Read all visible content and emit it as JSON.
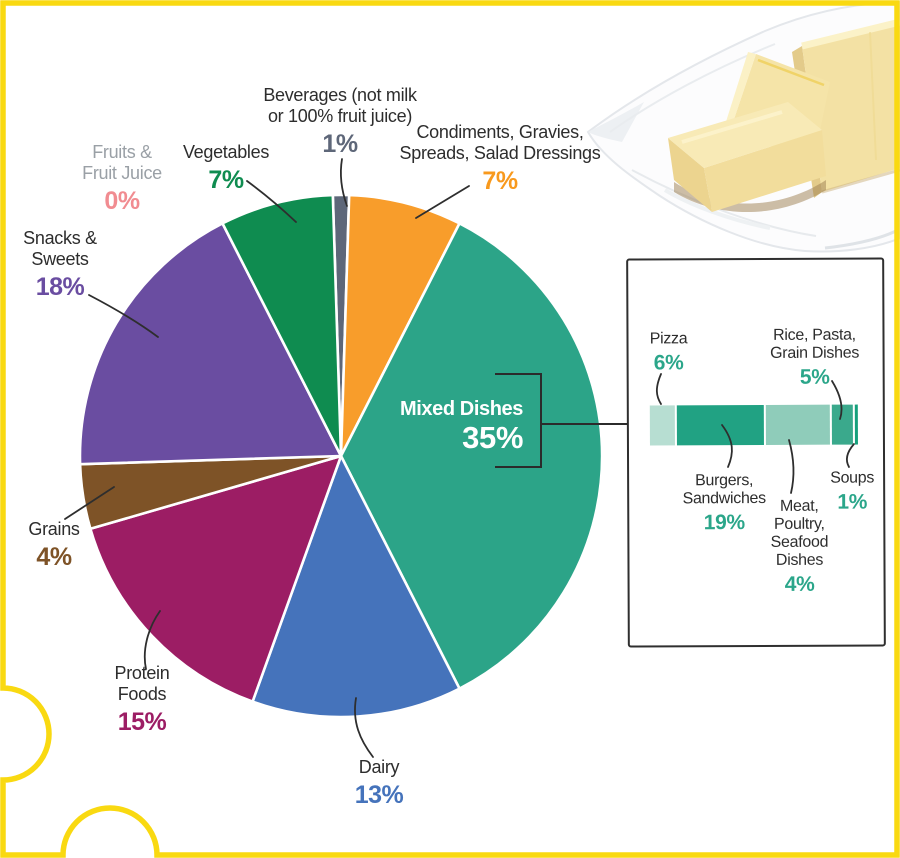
{
  "page": {
    "background": "#FFFFFF",
    "puzzle_border_color": "#F9D911"
  },
  "decorations": {
    "butter_photo": "sticks-of-butter-on-wax-paper"
  },
  "chart_data": {
    "type": "pie",
    "title": "",
    "legend_position": "callout-labels",
    "start_angle_deg": -1.8,
    "direction": "clockwise-from-top",
    "slices": [
      {
        "id": "beverages",
        "label": "Beverages (not milk or 100% fruit juice)",
        "label_lines": [
          "Beverages (not milk",
          "or 100% fruit juice)"
        ],
        "value": 1,
        "pct": "1%",
        "color": "#5E6779",
        "pct_color": "#5E6779",
        "label_color": "#2D2D2D"
      },
      {
        "id": "condiments",
        "label": "Condiments, Gravies, Spreads, Salad Dressings",
        "label_lines": [
          "Condiments, Gravies,",
          "Spreads, Salad Dressings"
        ],
        "value": 7,
        "pct": "7%",
        "color": "#F89D2B",
        "pct_color": "#F8991D",
        "label_color": "#2D2D2D"
      },
      {
        "id": "mixed-dishes",
        "label": "Mixed Dishes",
        "label_lines": [
          "Mixed Dishes"
        ],
        "value": 35,
        "pct": "35%",
        "color": "#2CA488",
        "pct_color": "#FFFFFF",
        "label_color": "#FFFFFF"
      },
      {
        "id": "dairy",
        "label": "Dairy",
        "label_lines": [
          "Dairy"
        ],
        "value": 13,
        "pct": "13%",
        "color": "#4573BB",
        "pct_color": "#4573BB",
        "label_color": "#2D2D2D"
      },
      {
        "id": "protein-foods",
        "label": "Protein Foods",
        "label_lines": [
          "Protein",
          "Foods"
        ],
        "value": 15,
        "pct": "15%",
        "color": "#9C1D64",
        "pct_color": "#9C1D64",
        "label_color": "#2D2D2D"
      },
      {
        "id": "grains",
        "label": "Grains",
        "label_lines": [
          "Grains"
        ],
        "value": 4,
        "pct": "4%",
        "color": "#7E5327",
        "pct_color": "#7E5327",
        "label_color": "#2D2D2D"
      },
      {
        "id": "snacks-sweets",
        "label": "Snacks & Sweets",
        "label_lines": [
          "Snacks &",
          "Sweets"
        ],
        "value": 18,
        "pct": "18%",
        "color": "#6A4DA1",
        "pct_color": "#6A4DA1",
        "label_color": "#2D2D2D"
      },
      {
        "id": "fruits-fruit-juice",
        "label": "Fruits & Fruit Juice",
        "label_lines": [
          "Fruits &",
          "Fruit Juice"
        ],
        "value": 0,
        "pct": "0%",
        "color": "#F18C91",
        "pct_color": "#F18C91",
        "label_color": "#9AA0A6"
      },
      {
        "id": "vegetables",
        "label": "Vegetables",
        "label_lines": [
          "Vegetables"
        ],
        "value": 7,
        "pct": "7%",
        "color": "#0F8C50",
        "pct_color": "#0F8C50",
        "label_color": "#2D2D2D"
      }
    ],
    "breakout": {
      "parent": "Mixed Dishes",
      "parent_pct": "35%",
      "type": "stacked-bar",
      "pct_color": "#2BA68A",
      "segments": [
        {
          "id": "pizza",
          "label": "Pizza",
          "label_lines": [
            "Pizza"
          ],
          "value": 6,
          "pct": "6%",
          "color": "#B7DED2",
          "width": 24
        },
        {
          "id": "burgers-sandwiches",
          "label": "Burgers, Sandwiches",
          "label_lines": [
            "Burgers,",
            "Sandwiches"
          ],
          "value": 19,
          "pct": "19%",
          "color": "#21A283",
          "width": 83
        },
        {
          "id": "meat-poultry-seafood",
          "label": "Meat, Poultry, Seafood Dishes",
          "label_lines": [
            "Meat,",
            "Poultry,",
            "Seafood",
            "Dishes"
          ],
          "value": 4,
          "pct": "4%",
          "color": "#8FCCBA",
          "width": 61
        },
        {
          "id": "rice-pasta-grain",
          "label": "Rice, Pasta, Grain Dishes",
          "label_lines": [
            "Rice, Pasta,",
            "Grain Dishes"
          ],
          "value": 5,
          "pct": "5%",
          "color": "#3AA98C",
          "width": 20
        },
        {
          "id": "soups",
          "label": "Soups",
          "label_lines": [
            "Soups"
          ],
          "value": 1,
          "pct": "1%",
          "color": "#16A07C",
          "width": 3
        }
      ]
    }
  }
}
